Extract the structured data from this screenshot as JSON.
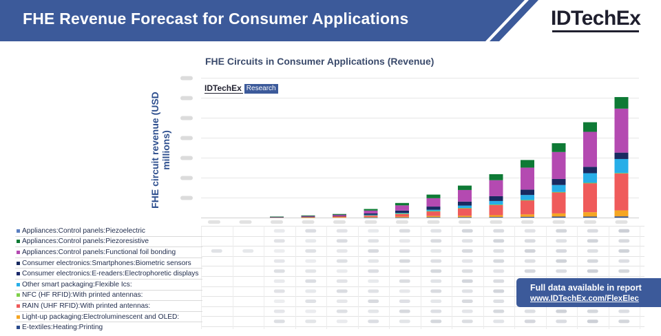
{
  "banner": {
    "title": "FHE Revenue Forecast for Consumer Applications",
    "color": "#3c5a9a"
  },
  "logo": {
    "text": "IDTechEx"
  },
  "badge": {
    "name": "IDTechEx",
    "tag": "Research"
  },
  "cta": {
    "line1": "Full data available in report",
    "line2": "www.IDTechEx.com/FlexElec"
  },
  "chart_data": {
    "type": "bar",
    "stacked": true,
    "title": "FHE Circuits in Consumer Applications (Revenue)",
    "ylabel": "FHE circuit revenue (USD millions)",
    "xlabel": "",
    "ylim": [
      0,
      720
    ],
    "yticks": [
      100,
      200,
      300,
      400,
      500,
      600,
      700
    ],
    "categories": [
      "1",
      "2",
      "3",
      "4",
      "5",
      "6",
      "7",
      "8",
      "9",
      "10",
      "11",
      "12",
      "13",
      "14"
    ],
    "series": [
      {
        "name": "E-textiles:Heating:Printing",
        "color": "#2a4b8d",
        "values": [
          0,
          0,
          0,
          0,
          0,
          1,
          1,
          2,
          2,
          3,
          4,
          5,
          5,
          6
        ]
      },
      {
        "name": "Light-up packaging:Electroluminescent and OLED:",
        "color": "#f5a623",
        "values": [
          0,
          0,
          0,
          1,
          2,
          3,
          4,
          6,
          7,
          9,
          12,
          16,
          22,
          30
        ]
      },
      {
        "name": "RAIN (UHF RFID):With printed antennas:",
        "color": "#ef5b5b",
        "values": [
          0,
          0,
          2,
          3,
          5,
          8,
          14,
          24,
          38,
          52,
          70,
          105,
          145,
          185
        ]
      },
      {
        "name": "NFC (HF RFID):With printed antennas:",
        "color": "#7fd04a",
        "values": [
          0,
          0,
          0,
          0,
          0,
          1,
          1,
          1,
          1,
          1,
          2,
          2,
          2,
          2
        ]
      },
      {
        "name": "Other smart packaging:Flexible Ics:",
        "color": "#27aee8",
        "values": [
          0,
          0,
          0,
          0,
          0,
          1,
          3,
          6,
          12,
          18,
          25,
          35,
          48,
          70
        ]
      },
      {
        "name": "Consumer electronics:E-readers:Electrophoretic displays",
        "color": "#1b2a6b",
        "values": [
          0,
          0,
          0,
          0,
          0,
          0,
          0,
          0,
          0,
          0,
          0,
          0,
          0,
          0
        ]
      },
      {
        "name": "Consumer electronics:Smartphones:Biometric sensors",
        "color": "#182a60",
        "values": [
          0,
          0,
          1,
          1,
          2,
          7,
          12,
          16,
          20,
          24,
          27,
          30,
          32,
          32
        ]
      },
      {
        "name": "Appliances:Control panels:Functional foil bonding",
        "color": "#b44ab1",
        "values": [
          0,
          0,
          1,
          3,
          5,
          14,
          26,
          42,
          58,
          80,
          110,
          135,
          175,
          220
        ]
      },
      {
        "name": "Appliances:Control panels:Piezoresistive",
        "color": "#0e7a35",
        "values": [
          0,
          0,
          1,
          3,
          4,
          8,
          12,
          18,
          22,
          30,
          38,
          44,
          48,
          58
        ]
      },
      {
        "name": "Appliances:Control panels:Piezoelectric",
        "color": "#5a7fc0",
        "values": [
          0,
          0,
          0,
          0,
          0,
          0,
          0,
          0,
          0,
          0,
          0,
          0,
          0,
          0
        ]
      }
    ]
  }
}
